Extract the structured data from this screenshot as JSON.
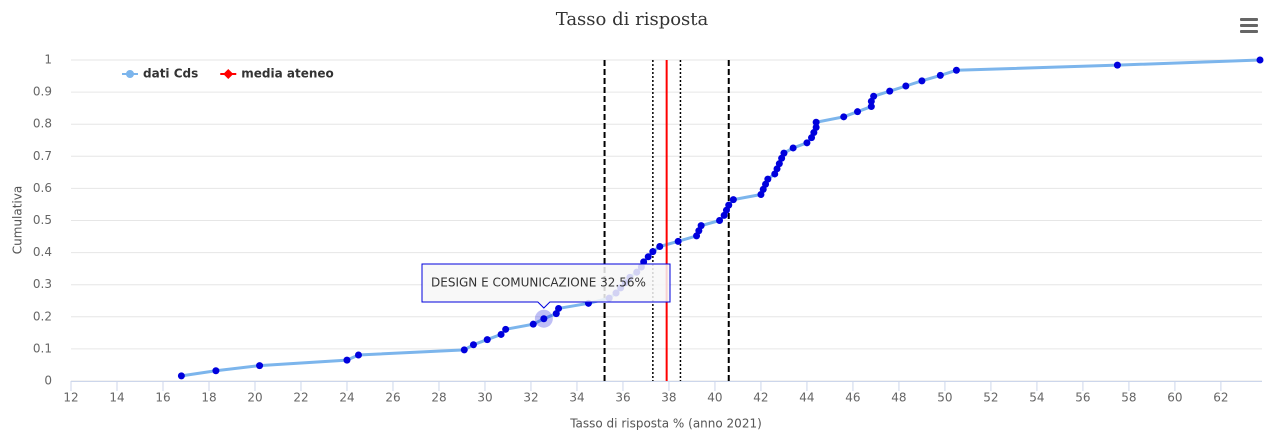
{
  "chart_data": {
    "type": "line",
    "title": "Tasso di risposta",
    "x_label": "Tasso di risposta % (anno 2021)",
    "y_label": "Cumulativa",
    "tooltip": "DESIGN E COMUNICAZIONE 32.56%",
    "xlim": [
      12,
      63.7
    ],
    "ylim": [
      0,
      1
    ],
    "xticks": [
      12,
      14,
      16,
      18,
      20,
      22,
      24,
      26,
      28,
      30,
      32,
      34,
      36,
      38,
      40,
      42,
      44,
      46,
      48,
      50,
      52,
      54,
      56,
      58,
      60,
      62
    ],
    "yticks": [
      0,
      0.1,
      0.2,
      0.3,
      0.4,
      0.5,
      0.6,
      0.7,
      0.8,
      0.9,
      1
    ],
    "grid": true,
    "legend": "top-left",
    "series": [
      {
        "name": "dati Cds",
        "color": "#7cb5ec",
        "marker_color": "#0000dd",
        "x": [
          16.8,
          18.3,
          20.2,
          24.0,
          24.5,
          29.1,
          29.5,
          30.1,
          30.7,
          30.9,
          32.1,
          32.56,
          33.1,
          33.2,
          34.5,
          35.4,
          35.7,
          35.9,
          36.1,
          36.3,
          36.6,
          36.8,
          36.9,
          37.1,
          37.3,
          37.6,
          38.4,
          39.2,
          39.3,
          39.4,
          40.2,
          40.4,
          40.5,
          40.6,
          40.8,
          42.0,
          42.1,
          42.2,
          42.3,
          42.6,
          42.7,
          42.8,
          42.9,
          43.0,
          43.4,
          44.0,
          44.2,
          44.3,
          44.4,
          44.4,
          45.6,
          46.2,
          46.8,
          46.8,
          46.9,
          47.6,
          48.3,
          49.0,
          49.8,
          50.5,
          57.5,
          63.7
        ],
        "values": [
          0.016,
          0.032,
          0.048,
          0.065,
          0.081,
          0.097,
          0.113,
          0.129,
          0.145,
          0.161,
          0.177,
          0.194,
          0.21,
          0.226,
          0.242,
          0.258,
          0.274,
          0.29,
          0.306,
          0.323,
          0.339,
          0.355,
          0.371,
          0.387,
          0.403,
          0.419,
          0.435,
          0.452,
          0.468,
          0.484,
          0.5,
          0.516,
          0.532,
          0.548,
          0.565,
          0.581,
          0.597,
          0.613,
          0.629,
          0.645,
          0.661,
          0.677,
          0.694,
          0.71,
          0.726,
          0.742,
          0.758,
          0.774,
          0.79,
          0.806,
          0.823,
          0.839,
          0.855,
          0.871,
          0.887,
          0.903,
          0.919,
          0.935,
          0.952,
          0.968,
          0.984,
          1
        ]
      },
      {
        "name": "media ateneo",
        "color": "#ff0000",
        "x": [
          37.9,
          37.9
        ],
        "values": [
          0,
          1
        ]
      }
    ],
    "reference_lines": [
      {
        "x": 35.2,
        "style": "dashed"
      },
      {
        "x": 37.3,
        "style": "dotted"
      },
      {
        "x": 38.5,
        "style": "dotted"
      },
      {
        "x": 40.6,
        "style": "dashed"
      }
    ]
  }
}
